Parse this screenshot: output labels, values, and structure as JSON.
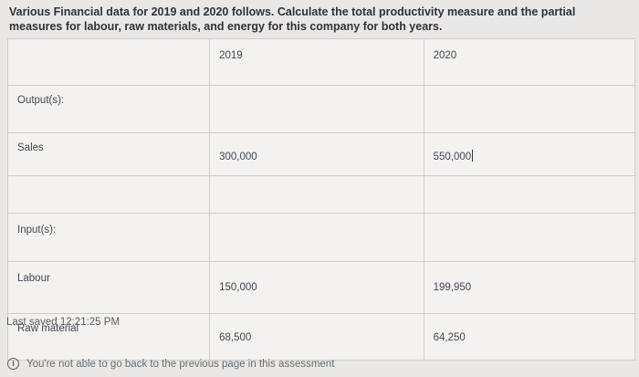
{
  "question": {
    "line1": "Various Financial data for 2019 and 2020 follows. Calculate the total productivity measure and the partial",
    "line2": "measures for labour, raw materials, and energy for this company for both years."
  },
  "table": {
    "headers": [
      "",
      "2019",
      "2020"
    ],
    "outputs_label": "Output(s):",
    "inputs_label": "Input(s):",
    "rows": {
      "sales": {
        "label": "Sales",
        "y2019": "300,000",
        "y2020": "550,000"
      },
      "labour": {
        "label": "Labour",
        "y2019": "150,000",
        "y2020": "199,950"
      },
      "raw_material": {
        "label": "Raw material",
        "y2019": "68,500",
        "y2020": "64,250"
      }
    }
  },
  "status": {
    "last_saved": "Last saved 12:21:25 PM",
    "notice": "You're not able to go back to the previous page in this assessment"
  },
  "icons": {
    "notice_icon": "info-icon"
  }
}
